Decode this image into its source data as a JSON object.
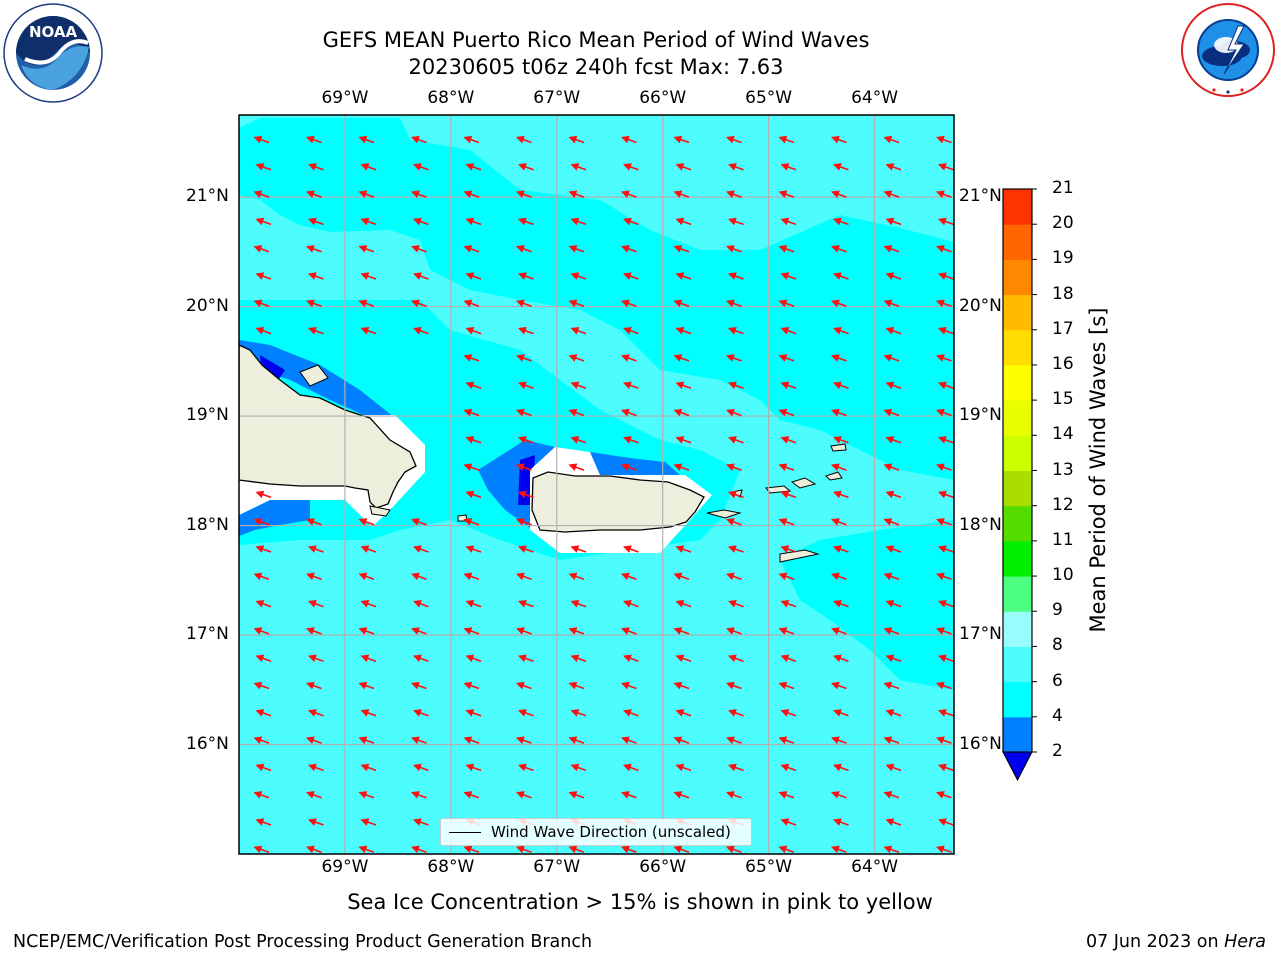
{
  "header": {
    "title_line1": "GEFS MEAN Puerto Rico Mean Period of Wind Waves",
    "title_line2": "20230605 t06z 240h fcst   Max: 7.63"
  },
  "logos": {
    "left": "NOAA",
    "left_ring": "NATIONAL OCEANIC AND ATMOSPHERIC ADMINISTRATION · U.S. DEPARTMENT OF COMMERCE",
    "right_ring": "NATIONAL WEATHER SERVICE"
  },
  "map": {
    "lon_labels": [
      "69°W",
      "68°W",
      "67°W",
      "66°W",
      "65°W",
      "64°W"
    ],
    "lat_labels": [
      "21°N",
      "20°N",
      "19°N",
      "18°N",
      "17°N",
      "16°N"
    ],
    "lon_range": [
      -70.0,
      -63.25
    ],
    "lat_range": [
      15.0,
      21.75
    ],
    "wind_wave_direction": "west-northwest",
    "colors": {
      "ocean_4_6": "#00ffff",
      "ocean_6_8": "#4dfdfd",
      "period_2_4": "#0080ff",
      "period_below_2": "#0000ee",
      "land": "#eeeedc",
      "arrows": "#ff1010",
      "grid": "#b0b0b0"
    }
  },
  "legend": {
    "label": "Wind Wave Direction (unscaled)"
  },
  "colorbar": {
    "title": "Mean Period of Wind Waves [s]",
    "ticks": [
      "2",
      "4",
      "6",
      "8",
      "9",
      "10",
      "11",
      "12",
      "13",
      "14",
      "15",
      "16",
      "17",
      "18",
      "19",
      "20",
      "21"
    ],
    "band_colors": [
      "#0080ff",
      "#00ffff",
      "#4dfdfd",
      "#99fdfd",
      "#4dff80",
      "#00ee00",
      "#55dd00",
      "#aadd00",
      "#ccff00",
      "#e8ff00",
      "#ffff00",
      "#ffdd00",
      "#ffbb00",
      "#ff8800",
      "#ff6600",
      "#ff3300",
      "#ff0000"
    ],
    "under_color": "#0000ee"
  },
  "caption": "Sea Ice Concentration > 15% is shown in pink to yellow",
  "footer": {
    "left": "NCEP/EMC/Verification Post Processing Product Generation Branch",
    "right_prefix": "07 Jun 2023 on ",
    "right_machine": "Hera"
  }
}
